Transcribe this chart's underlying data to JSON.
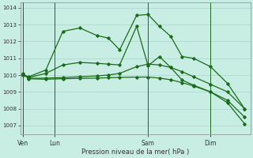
{
  "xlabel": "Pression niveau de la mer( hPa )",
  "ylim": [
    1006.5,
    1014.3
  ],
  "yticks": [
    1007,
    1008,
    1009,
    1010,
    1011,
    1012,
    1013,
    1014
  ],
  "bg_color": "#c8eee4",
  "grid_color": "#aad4cc",
  "line_color": "#1a6b1a",
  "xtick_labels": [
    "Ven",
    "Lun",
    "Sam",
    "Dim"
  ],
  "s1_x": [
    0,
    1,
    4,
    7,
    10,
    13,
    15,
    17,
    20,
    22,
    24,
    26,
    28,
    30,
    33,
    36,
    39
  ],
  "s1_y": [
    1010.0,
    1009.9,
    1010.3,
    1012.6,
    1012.8,
    1012.35,
    1012.2,
    1011.5,
    1013.55,
    1013.6,
    1012.9,
    1012.3,
    1011.1,
    1011.0,
    1010.5,
    1009.5,
    1008.0
  ],
  "s2_x": [
    0,
    1,
    4,
    7,
    10,
    13,
    15,
    17,
    20,
    22,
    24,
    26,
    28,
    30,
    33,
    36,
    39
  ],
  "s2_y": [
    1010.0,
    1009.85,
    1010.1,
    1010.6,
    1010.75,
    1010.7,
    1010.65,
    1010.6,
    1012.9,
    1010.55,
    1011.1,
    1010.45,
    1009.7,
    1009.4,
    1009.0,
    1008.35,
    1007.1
  ],
  "s3_x": [
    0,
    1,
    4,
    7,
    10,
    13,
    15,
    17,
    20,
    22,
    24,
    26,
    28,
    30,
    33,
    36,
    39
  ],
  "s3_y": [
    1010.05,
    1009.8,
    1009.82,
    1009.85,
    1009.9,
    1009.95,
    1010.0,
    1010.1,
    1010.5,
    1010.65,
    1010.6,
    1010.45,
    1010.2,
    1009.9,
    1009.45,
    1009.0,
    1008.0
  ],
  "s4_x": [
    0,
    1,
    4,
    7,
    10,
    13,
    15,
    17,
    20,
    22,
    24,
    26,
    28,
    30,
    33,
    36,
    39
  ],
  "s4_y": [
    1010.08,
    1009.78,
    1009.75,
    1009.78,
    1009.8,
    1009.82,
    1009.84,
    1009.86,
    1009.88,
    1009.88,
    1009.82,
    1009.72,
    1009.55,
    1009.35,
    1009.0,
    1008.5,
    1007.5
  ],
  "vline_positions": [
    0,
    5.5,
    22,
    33
  ],
  "xtick_positions": [
    0,
    5.5,
    22,
    33
  ]
}
